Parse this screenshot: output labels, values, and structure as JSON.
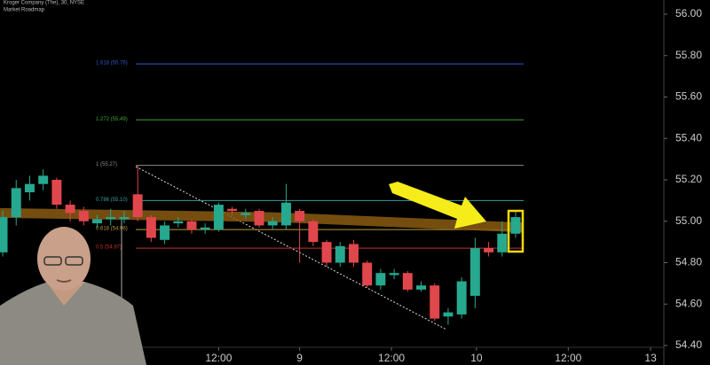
{
  "chart_data": {
    "type": "candlestick",
    "title": "Kroger Company (The), 30, NYSE",
    "subtitle": "Market Roadmap",
    "up_color": "#26a98f",
    "down_color": "#e0474c",
    "x": [
      0,
      1,
      2,
      3,
      4,
      5,
      6,
      7,
      8,
      9,
      10,
      11,
      12,
      13,
      14,
      15,
      16,
      17,
      18,
      19,
      20,
      21,
      22,
      23,
      24,
      25,
      26,
      27,
      28,
      29,
      30,
      31,
      32,
      33,
      34,
      35,
      36,
      37,
      38
    ],
    "open": [
      54.85,
      55.02,
      55.14,
      55.18,
      55.2,
      55.08,
      55.05,
      54.99,
      55.01,
      55.01,
      55.13,
      55.02,
      54.91,
      54.99,
      55.0,
      54.96,
      54.96,
      55.06,
      55.03,
      55.05,
      54.98,
      54.98,
      55.05,
      55.0,
      54.9,
      54.8,
      54.89,
      54.8,
      54.69,
      54.74,
      54.75,
      54.67,
      54.69,
      54.54,
      54.55,
      54.64,
      54.87,
      54.85,
      54.94
    ],
    "close": [
      55.02,
      55.16,
      55.18,
      55.22,
      55.08,
      55.04,
      55.0,
      55.01,
      55.02,
      55.02,
      55.02,
      54.92,
      54.98,
      55.0,
      54.96,
      54.97,
      55.08,
      55.05,
      55.04,
      54.98,
      55.0,
      55.09,
      55.0,
      54.9,
      54.8,
      54.88,
      54.8,
      54.69,
      54.75,
      54.75,
      54.67,
      54.69,
      54.53,
      54.56,
      54.71,
      54.87,
      54.85,
      54.94,
      55.02
    ],
    "high": [
      55.05,
      55.2,
      55.22,
      55.25,
      55.21,
      55.1,
      55.07,
      55.03,
      55.06,
      55.05,
      55.27,
      55.03,
      55.0,
      55.02,
      55.01,
      54.99,
      55.09,
      55.07,
      55.06,
      55.06,
      55.02,
      55.18,
      55.06,
      55.01,
      54.91,
      54.9,
      54.91,
      54.81,
      54.77,
      54.77,
      54.76,
      54.71,
      54.7,
      54.58,
      54.73,
      54.92,
      54.9,
      55.0,
      55.05
    ],
    "low": [
      54.83,
      54.98,
      55.1,
      55.15,
      55.06,
      55.0,
      54.98,
      54.97,
      54.98,
      54.99,
      55.0,
      54.9,
      54.89,
      54.97,
      54.94,
      54.94,
      54.95,
      55.03,
      55.01,
      54.97,
      54.96,
      54.96,
      54.8,
      54.88,
      54.78,
      54.78,
      54.78,
      54.68,
      54.67,
      54.72,
      54.66,
      54.66,
      54.52,
      54.5,
      54.53,
      54.58,
      54.83,
      54.83,
      54.92
    ],
    "ma": {
      "name": "Market Roadmap",
      "color": "#8a5a12",
      "x": [
        -0.2,
        20,
        38.5
      ],
      "values": [
        55.04,
        55.02,
        54.97
      ]
    },
    "levels": [
      {
        "label": "1.618 (55.76)",
        "value": 55.76,
        "color": "#2f55c8"
      },
      {
        "label": "1.272 (55.49)",
        "value": 55.49,
        "color": "#3fa535"
      },
      {
        "label": "1 (55.27)",
        "value": 55.27,
        "color": "#8a8a8a"
      },
      {
        "label": "0.786 (55.10)",
        "value": 55.1,
        "color": "#3a9fa0"
      },
      {
        "label": "0.618 (54.96)",
        "value": 54.96,
        "color": "#b89a3a"
      },
      {
        "label": "0.5 (54.87)",
        "value": 54.87,
        "color": "#c43030"
      }
    ],
    "xlim": [
      -0.2,
      48.85
    ],
    "xticks": [
      {
        "value": 16,
        "label": "12:00"
      },
      {
        "value": 22,
        "label": "9"
      },
      {
        "value": 28.8,
        "label": "12:00"
      },
      {
        "value": 35.1,
        "label": "10"
      },
      {
        "value": 41.9,
        "label": "12:00"
      },
      {
        "value": 48,
        "label": "13"
      }
    ],
    "ylim": [
      54.4,
      56.0
    ],
    "yticks": [
      {
        "value": 54.4,
        "label": "54.40"
      },
      {
        "value": 54.6,
        "label": "54.60"
      },
      {
        "value": 54.8,
        "label": "54.80"
      },
      {
        "value": 55.0,
        "label": "55.00"
      },
      {
        "value": 55.2,
        "label": "55.20"
      },
      {
        "value": 55.4,
        "label": "55.40"
      },
      {
        "value": 55.6,
        "label": "55.60"
      },
      {
        "value": 55.8,
        "label": "55.80"
      },
      {
        "value": 56.0,
        "label": "56.00"
      }
    ]
  }
}
